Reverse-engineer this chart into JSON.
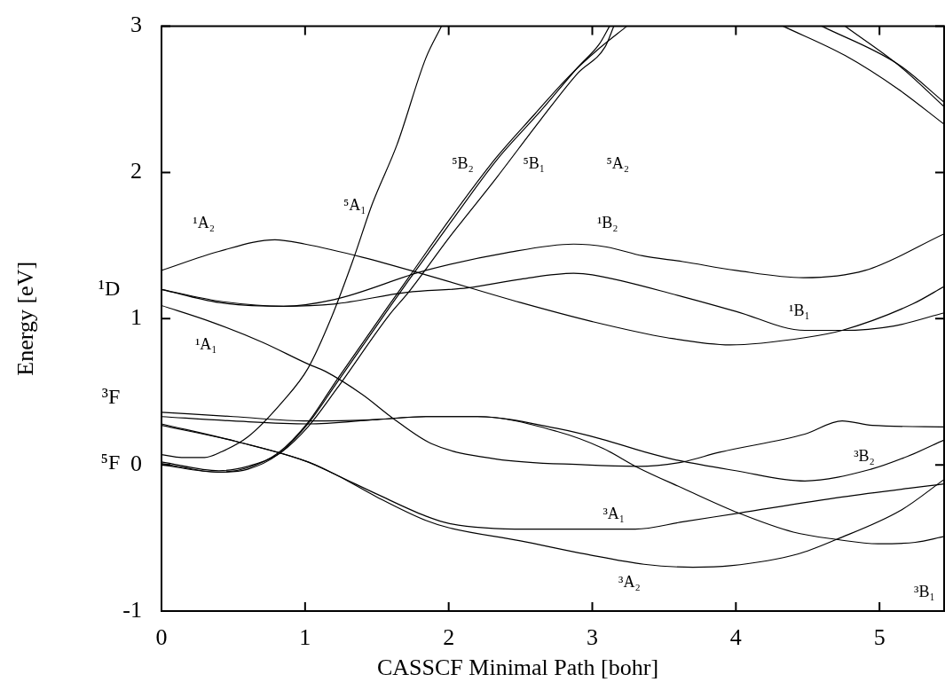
{
  "chart_data": {
    "type": "line",
    "xlabel": "CASSCF Minimal Path [bohr]",
    "ylabel": "Energy [eV]",
    "xlim": [
      0,
      5.45
    ],
    "xticks": [
      0,
      1,
      2,
      3,
      4,
      5
    ],
    "ylim": [
      -1,
      3
    ],
    "yticks": [
      -1,
      0,
      1,
      2,
      3
    ],
    "grid": false,
    "legend": false,
    "marker": "none",
    "line_style": "solid",
    "series": [
      {
        "color": "#000000",
        "x": [
          0,
          0.4,
          0.79,
          1,
          1.4,
          1.84,
          2.5,
          3,
          3.52,
          3.96,
          4.48,
          4.74,
          5.23,
          5.45
        ],
        "values": [
          1.33,
          1.46,
          1.54,
          1.51,
          1.42,
          1.3,
          1.11,
          0.98,
          0.87,
          0.82,
          0.87,
          0.92,
          1.1,
          1.22
        ]
      },
      {
        "color": "#000000",
        "x": [
          0,
          0.4,
          0.85,
          1.2,
          1.84,
          2.4,
          2.87,
          3.1,
          3.35,
          3.63,
          4,
          4.47,
          4.9,
          5.45
        ],
        "values": [
          1.2,
          1.12,
          1.085,
          1.13,
          1.33,
          1.45,
          1.51,
          1.49,
          1.43,
          1.39,
          1.33,
          1.28,
          1.33,
          1.58
        ]
      },
      {
        "color": "#000000",
        "x": [
          0,
          0.4,
          0.85,
          1.2,
          1.71,
          2.13,
          2.5,
          2.87,
          3,
          3.63,
          4,
          4.48,
          4.74,
          5.1,
          5.45
        ],
        "values": [
          1.2,
          1.11,
          1.085,
          1.1,
          1.18,
          1.21,
          1.27,
          1.31,
          1.3,
          1.15,
          1.05,
          0.92,
          0.92,
          0.95,
          1.04
        ]
      },
      {
        "color": "#000000",
        "x": [
          0,
          0.34,
          0.7,
          1.02,
          1.14,
          1.4,
          1.61,
          1.88,
          2.33,
          2.95,
          3.32,
          3.63,
          3.88,
          4.48,
          4.74,
          4.95,
          5.45
        ],
        "values": [
          1.09,
          0.98,
          0.84,
          0.69,
          0.64,
          0.48,
          0.32,
          0.145,
          0.04,
          0,
          -0.01,
          0.02,
          0.085,
          0.21,
          0.3,
          0.27,
          0.26
        ]
      },
      {
        "color": "#000000",
        "x": [
          0,
          0.5,
          1.02,
          1.5,
          1.84,
          2.2,
          2.75,
          3.07,
          3.36,
          3.6,
          4,
          4.48,
          4.94,
          5.2,
          5.45
        ],
        "values": [
          0.36,
          0.33,
          0.3,
          0.31,
          0.33,
          0.33,
          0.25,
          0.175,
          0.09,
          0.03,
          -0.04,
          -0.11,
          -0.03,
          0.06,
          0.17
        ]
      },
      {
        "color": "#000000",
        "x": [
          0,
          0.5,
          1.02,
          1.5,
          1.84,
          2.2,
          2.75,
          3.07,
          3.32,
          3.63,
          4.02,
          4.4,
          4.7,
          4.99,
          5.25,
          5.45
        ],
        "values": [
          0.33,
          0.3,
          0.28,
          0.31,
          0.33,
          0.33,
          0.23,
          0.115,
          -0.02,
          -0.16,
          -0.33,
          -0.46,
          -0.51,
          -0.54,
          -0.53,
          -0.49
        ]
      },
      {
        "color": "#000000",
        "x": [
          0,
          0.52,
          1.02,
          1.22,
          1.5,
          1.84,
          2,
          2.54,
          3.3,
          3.63,
          4.02,
          4.74,
          5.45
        ],
        "values": [
          0.27,
          0.16,
          0.02,
          -0.07,
          -0.2,
          -0.35,
          -0.4,
          -0.44,
          -0.44,
          -0.39,
          -0.33,
          -0.22,
          -0.13
        ]
      },
      {
        "color": "#000000",
        "x": [
          0,
          0.52,
          1.02,
          1.22,
          1.5,
          1.84,
          2,
          2.5,
          2.95,
          3.36,
          3.7,
          3.96,
          4.43,
          4.7,
          5.15,
          5.45
        ],
        "values": [
          0.28,
          0.16,
          0.02,
          -0.07,
          -0.22,
          -0.38,
          -0.43,
          -0.52,
          -0.61,
          -0.68,
          -0.7,
          -0.69,
          -0.61,
          -0.51,
          -0.31,
          -0.1
        ]
      },
      {
        "color": "#000000",
        "x": [
          0,
          0.14,
          0.3,
          0.42,
          0.6,
          0.85,
          1.02,
          1.18,
          1.33,
          1.47,
          1.64,
          1.84,
          1.95
        ],
        "values": [
          0.07,
          0.05,
          0.05,
          0.09,
          0.19,
          0.44,
          0.66,
          1,
          1.39,
          1.79,
          2.19,
          2.78,
          3
        ]
      },
      {
        "color": "#000000",
        "x": [
          0,
          0.4,
          0.6,
          0.81,
          1.02,
          1.22,
          1.59,
          1.72,
          2,
          2.33,
          2.6,
          2.83,
          3.05,
          3.24
        ],
        "values": [
          0.01,
          -0.05,
          -0.02,
          0.08,
          0.29,
          0.58,
          1.1,
          1.28,
          1.67,
          2.1,
          2.4,
          2.65,
          2.85,
          3
        ]
      },
      {
        "color": "#000000",
        "x": [
          0,
          0.4,
          0.6,
          0.81,
          1.02,
          1.22,
          1.59,
          1.72,
          2,
          2.33,
          2.64,
          2.9,
          3.05,
          3.12
        ],
        "values": [
          0,
          -0.05,
          -0.03,
          0.07,
          0.28,
          0.56,
          1.08,
          1.26,
          1.64,
          2.08,
          2.42,
          2.72,
          2.88,
          3
        ]
      },
      {
        "color": "#000000",
        "x": [
          0,
          0.4,
          0.6,
          0.81,
          1.02,
          1.22,
          1.59,
          1.72,
          2,
          2.33,
          2.64,
          2.9,
          3.09,
          3.15
        ],
        "values": [
          0.02,
          -0.04,
          -0.01,
          0.07,
          0.26,
          0.52,
          1.03,
          1.18,
          1.55,
          1.96,
          2.36,
          2.68,
          2.86,
          3
        ]
      },
      {
        "color": "#000000",
        "x": [
          4.33,
          4.76,
          5.13,
          5.45
        ],
        "values": [
          3,
          2.8,
          2.57,
          2.33
        ]
      },
      {
        "color": "#000000",
        "x": [
          4.6,
          5.13,
          5.45
        ],
        "values": [
          3,
          2.74,
          2.48
        ]
      },
      {
        "color": "#000000",
        "x": [
          4.76,
          5.15,
          5.45
        ],
        "values": [
          3,
          2.72,
          2.45
        ]
      }
    ],
    "annotations": [
      "¹A₂",
      "⁵A₁",
      "⁵B₂",
      "⁵B₁",
      "⁵A₂",
      "¹B₂",
      "¹B₁",
      "¹A₁",
      "³B₂",
      "³A₁",
      "³A₂",
      "³B₁",
      "¹D",
      "³F",
      "⁵F"
    ]
  }
}
